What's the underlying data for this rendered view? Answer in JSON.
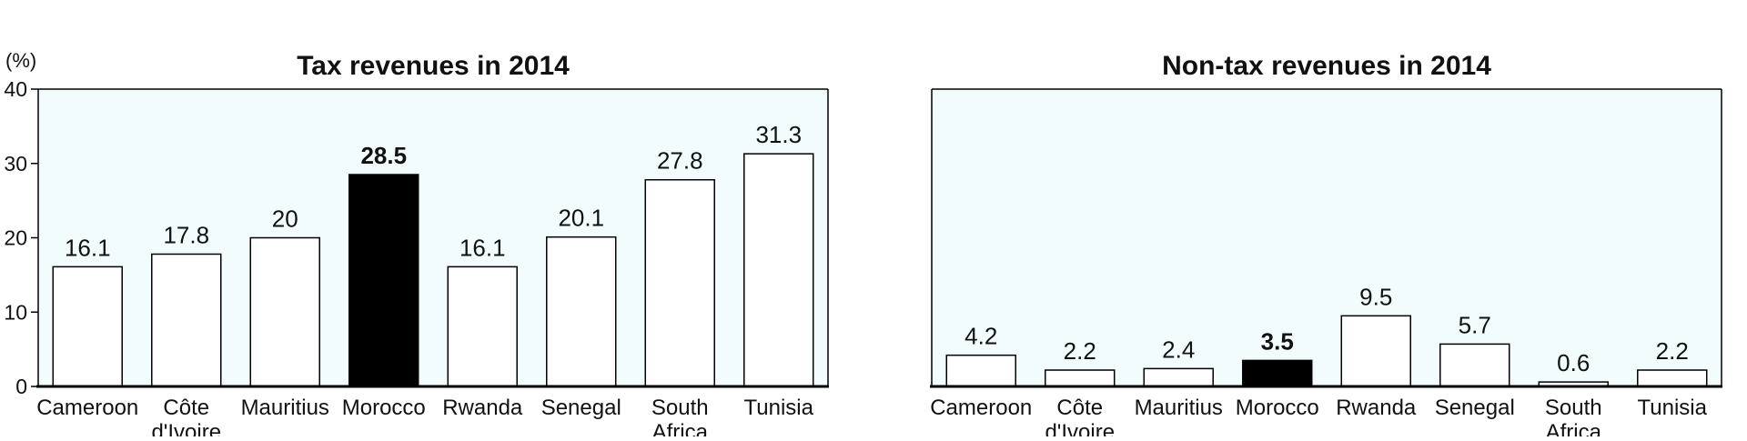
{
  "unit_label": "(%)",
  "chart_data": [
    {
      "type": "bar",
      "title": "Tax revenues in 2014",
      "categories": [
        "Cameroon",
        "Côte d'Ivoire",
        "Mauritius",
        "Morocco",
        "Rwanda",
        "Senegal",
        "South Africa",
        "Tunisia"
      ],
      "category_lines": [
        [
          "Cameroon"
        ],
        [
          "Côte",
          "d'Ivoire"
        ],
        [
          "Mauritius"
        ],
        [
          "Morocco"
        ],
        [
          "Rwanda"
        ],
        [
          "Senegal"
        ],
        [
          "South",
          "Africa"
        ],
        [
          "Tunisia"
        ]
      ],
      "values": [
        16.1,
        17.8,
        20,
        28.5,
        16.1,
        20.1,
        27.8,
        31.3
      ],
      "value_labels": [
        "16.1",
        "17.8",
        "20",
        "28.5",
        "16.1",
        "20.1",
        "27.8",
        "31.3"
      ],
      "highlight": "Morocco",
      "ylim": [
        0,
        40
      ],
      "yticks": [
        0,
        10,
        20,
        30,
        40
      ],
      "ylabel": "(%)",
      "show_y_axis": true,
      "grid": false,
      "colors": {
        "plot_bg": "#f2fcfc",
        "bar": "#ffffff",
        "highlight_bar": "#000000",
        "stroke": "#000000"
      }
    },
    {
      "type": "bar",
      "title": "Non-tax revenues in 2014",
      "categories": [
        "Cameroon",
        "Côte d'Ivoire",
        "Mauritius",
        "Morocco",
        "Rwanda",
        "Senegal",
        "South Africa",
        "Tunisia"
      ],
      "category_lines": [
        [
          "Cameroon"
        ],
        [
          "Côte",
          "d'Ivoire"
        ],
        [
          "Mauritius"
        ],
        [
          "Morocco"
        ],
        [
          "Rwanda"
        ],
        [
          "Senegal"
        ],
        [
          "South",
          "Africa"
        ],
        [
          "Tunisia"
        ]
      ],
      "values": [
        4.2,
        2.2,
        2.4,
        3.5,
        9.5,
        5.7,
        0.6,
        2.2
      ],
      "value_labels": [
        "4.2",
        "2.2",
        "2.4",
        "3.5",
        "9.5",
        "5.7",
        "0.6",
        "2.2"
      ],
      "highlight": "Morocco",
      "ylim": [
        0,
        40
      ],
      "yticks": [],
      "ylabel": "",
      "show_y_axis": false,
      "grid": false,
      "colors": {
        "plot_bg": "#f2fcfc",
        "bar": "#ffffff",
        "highlight_bar": "#000000",
        "stroke": "#000000"
      }
    }
  ]
}
